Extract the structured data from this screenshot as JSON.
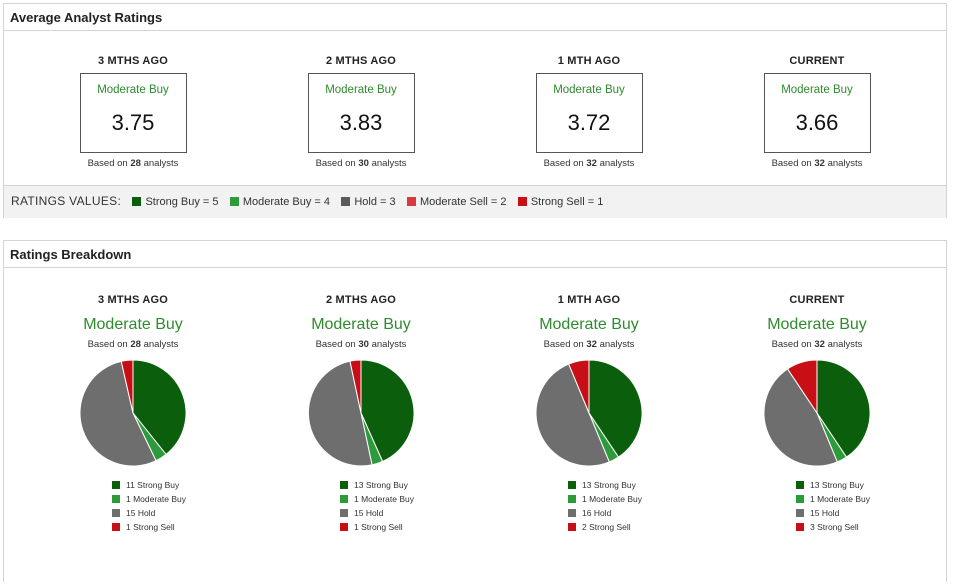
{
  "avg_panel": {
    "title": "Average Analyst Ratings",
    "based_prefix": "Based on",
    "based_suffix": "analysts",
    "columns": [
      {
        "period": "3 MTHS AGO",
        "rating": "Moderate Buy",
        "score": "3.75",
        "analysts": "28"
      },
      {
        "period": "2 MTHS AGO",
        "rating": "Moderate Buy",
        "score": "3.83",
        "analysts": "30"
      },
      {
        "period": "1 MTH AGO",
        "rating": "Moderate Buy",
        "score": "3.72",
        "analysts": "32"
      },
      {
        "period": "CURRENT",
        "rating": "Moderate Buy",
        "score": "3.66",
        "analysts": "32"
      }
    ],
    "values_label": "RATINGS VALUES:",
    "values": [
      {
        "label": "Strong Buy = 5",
        "color": "#0b5e0b"
      },
      {
        "label": "Moderate Buy = 4",
        "color": "#2e9b3a"
      },
      {
        "label": "Hold = 3",
        "color": "#5a5a5a"
      },
      {
        "label": "Moderate Sell = 2",
        "color": "#d9393f"
      },
      {
        "label": "Strong Sell = 1",
        "color": "#c90f16"
      }
    ]
  },
  "breakdown_panel": {
    "title": "Ratings Breakdown",
    "based_prefix": "Based on",
    "based_suffix": "analysts",
    "columns": [
      {
        "period": "3 MTHS AGO",
        "rating": "Moderate Buy",
        "analysts": "28",
        "legend": [
          "11 Strong Buy",
          "1 Moderate Buy",
          "15 Hold",
          "1 Strong Sell"
        ]
      },
      {
        "period": "2 MTHS AGO",
        "rating": "Moderate Buy",
        "analysts": "30",
        "legend": [
          "13 Strong Buy",
          "1 Moderate Buy",
          "15 Hold",
          "1 Strong Sell"
        ]
      },
      {
        "period": "1 MTH AGO",
        "rating": "Moderate Buy",
        "analysts": "32",
        "legend": [
          "13 Strong Buy",
          "1 Moderate Buy",
          "16 Hold",
          "2 Strong Sell"
        ]
      },
      {
        "period": "CURRENT",
        "rating": "Moderate Buy",
        "analysts": "32",
        "legend": [
          "13 Strong Buy",
          "1 Moderate Buy",
          "15 Hold",
          "3 Strong Sell"
        ]
      }
    ]
  },
  "colors": {
    "strong_buy": "#0b5e0b",
    "moderate_buy": "#2e9b3a",
    "hold": "#6e6e6e",
    "strong_sell": "#c90f16"
  },
  "chart_data": [
    {
      "type": "pie",
      "categories": [
        "Strong Buy",
        "Moderate Buy",
        "Hold",
        "Strong Sell"
      ],
      "values": [
        11,
        1,
        15,
        1
      ]
    },
    {
      "type": "pie",
      "categories": [
        "Strong Buy",
        "Moderate Buy",
        "Hold",
        "Strong Sell"
      ],
      "values": [
        13,
        1,
        15,
        1
      ]
    },
    {
      "type": "pie",
      "categories": [
        "Strong Buy",
        "Moderate Buy",
        "Hold",
        "Strong Sell"
      ],
      "values": [
        13,
        1,
        16,
        2
      ]
    },
    {
      "type": "pie",
      "categories": [
        "Strong Buy",
        "Moderate Buy",
        "Hold",
        "Strong Sell"
      ],
      "values": [
        13,
        1,
        15,
        3
      ]
    }
  ]
}
